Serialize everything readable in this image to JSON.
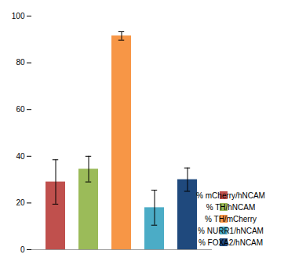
{
  "chart_data": {
    "type": "bar",
    "categories": [
      "% mCherry/hNCAM",
      "% TH/hNCAM",
      "% TH/mCherry",
      "% NURR1/hNCAM",
      "% FOXA2/hNCAM"
    ],
    "values": [
      29.0,
      34.5,
      91.5,
      18.0,
      30.0
    ],
    "errors": [
      9.5,
      5.5,
      1.8,
      7.5,
      5.0
    ],
    "colors": [
      "#c0504d",
      "#9bbb59",
      "#f79646",
      "#4bacc6",
      "#1f497d"
    ],
    "ylim": [
      0,
      100
    ],
    "yticks": [
      0,
      20,
      40,
      60,
      80,
      100
    ],
    "grid": false,
    "legend": "lower right",
    "tick_labels": "y"
  }
}
